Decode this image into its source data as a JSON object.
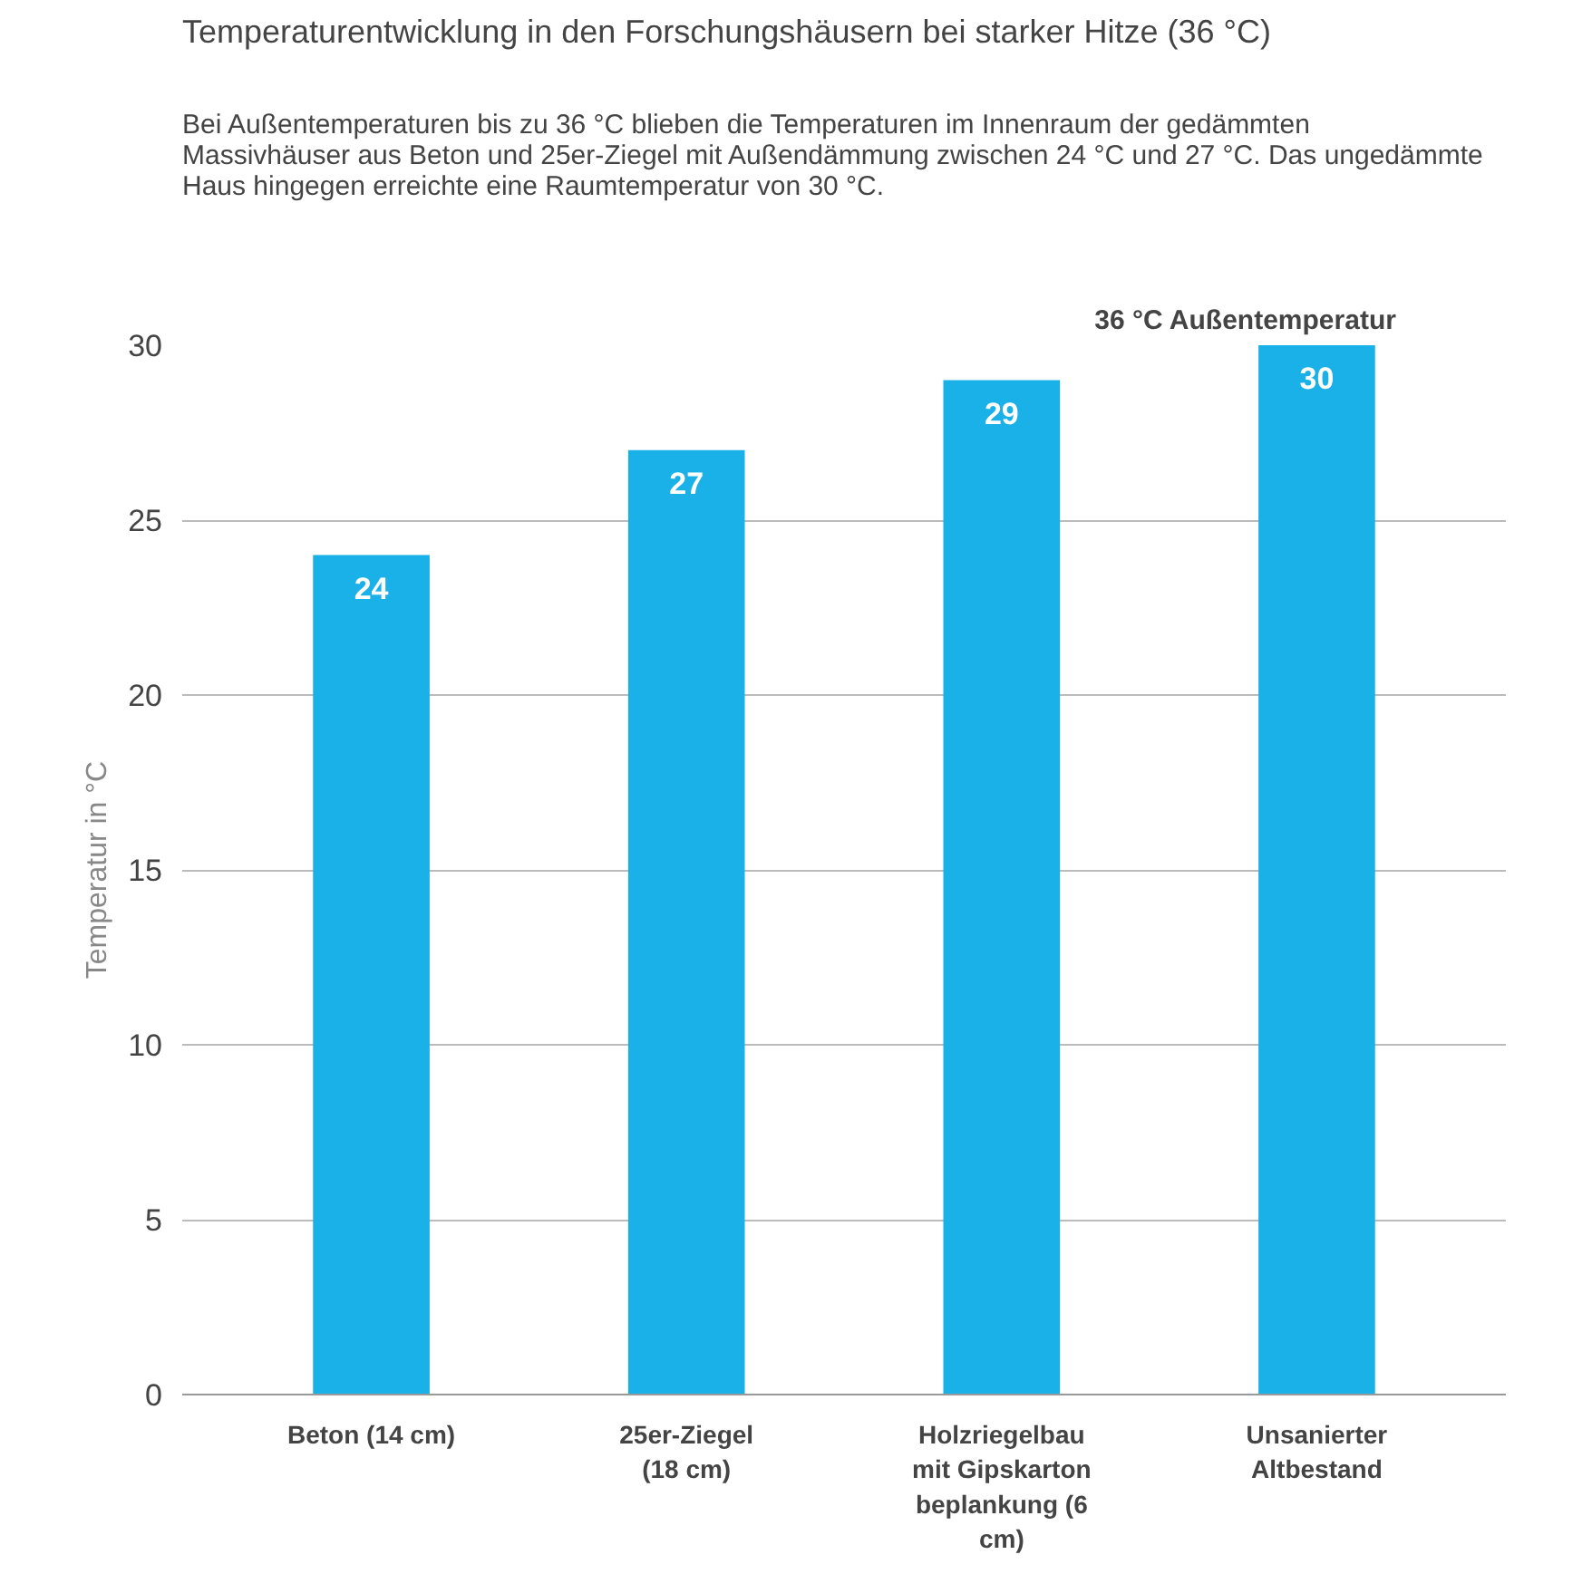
{
  "chart_data": {
    "type": "bar",
    "title": "Temperaturentwicklung in den Forschungshäusern bei starker Hitze (36 °C)",
    "subtitle": "Bei Außentemperaturen bis zu 36 °C blieben die Temperaturen im Innenraum der gedämmten Massivhäuser aus Beton und 25er-Ziegel mit Außendämmung zwischen 24 °C und 27 °C. Das ungedämmte Haus hingegen erreichte eine Raumtemperatur von 30 °C.",
    "annotations": [
      "36 °C Außentemperatur"
    ],
    "ylabel": "Temperatur in °C",
    "categories": [
      "Beton (14 cm)",
      "25er-Ziegel (18 cm)",
      "Holzriegelbau mit Gipskartonbeplankung (6 cm)",
      "Unsanierter Altbestand"
    ],
    "values": [
      24,
      27,
      29,
      30
    ],
    "color": "#1ab0e8",
    "data_labels": true,
    "ylim": [
      0,
      30
    ],
    "yticks": [
      0,
      5,
      10,
      15,
      20,
      25,
      30
    ],
    "grid": "y"
  }
}
